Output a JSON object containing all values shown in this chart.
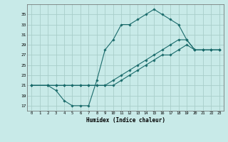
{
  "xlabel": "Humidex (Indice chaleur)",
  "bg_color": "#c8eae8",
  "grid_color": "#a8ceca",
  "line_color": "#1a6b6b",
  "line1_x": [
    0,
    2,
    3,
    4,
    5,
    6,
    7,
    8,
    9,
    10,
    11,
    12,
    13,
    14,
    15,
    16,
    17,
    18,
    19,
    20,
    21,
    22,
    23
  ],
  "line1_y": [
    21,
    21,
    21,
    21,
    21,
    21,
    21,
    21,
    21,
    21,
    22,
    23,
    24,
    25,
    26,
    27,
    27,
    28,
    29,
    28,
    28,
    28,
    28
  ],
  "line2_x": [
    0,
    2,
    3,
    4,
    5,
    6,
    7,
    8,
    9,
    10,
    11,
    12,
    13,
    14,
    15,
    16,
    17,
    18,
    19,
    20,
    21,
    22,
    23
  ],
  "line2_y": [
    21,
    21,
    20,
    18,
    17,
    17,
    17,
    22,
    28,
    30,
    33,
    33,
    34,
    35,
    36,
    35,
    34,
    33,
    30,
    28,
    28,
    28,
    28
  ],
  "line3_x": [
    0,
    2,
    3,
    4,
    5,
    6,
    7,
    8,
    9,
    10,
    11,
    12,
    13,
    14,
    15,
    16,
    17,
    18,
    19,
    20,
    21,
    22,
    23
  ],
  "line3_y": [
    21,
    21,
    21,
    21,
    21,
    21,
    21,
    21,
    21,
    22,
    23,
    24,
    25,
    26,
    27,
    28,
    29,
    30,
    30,
    28,
    28,
    28,
    28
  ],
  "xlim": [
    -0.5,
    23.5
  ],
  "ylim": [
    16.0,
    37.0
  ],
  "yticks": [
    17,
    19,
    21,
    23,
    25,
    27,
    29,
    31,
    33,
    35
  ],
  "xticks": [
    0,
    1,
    2,
    3,
    4,
    5,
    6,
    7,
    8,
    9,
    10,
    11,
    12,
    13,
    14,
    15,
    16,
    17,
    18,
    19,
    20,
    21,
    22,
    23
  ]
}
